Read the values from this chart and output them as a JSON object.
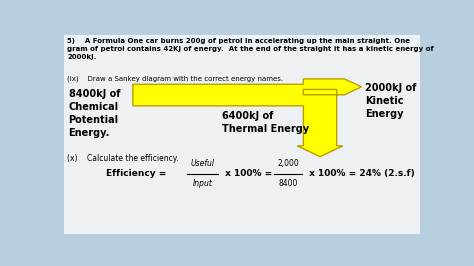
{
  "background_color": "#b8cfe0",
  "panel_color": "#f0f2f4",
  "arrow_color": "#ffff00",
  "arrow_edge_color": "#b8a000",
  "title_text": "5)    A Formula One car burns 200g of petrol in accelerating up the main straight. One gram of petrol contains 42KJ of energy.  At the end of the straight it has a kinetic energy of 2000kJ.",
  "ix_sankey": "(ix)    Draw a Sankey diagram with the correct energy names.",
  "label_left": "8400kJ of\nChemical\nPotential\nEnergy.",
  "label_right": "2000kJ of\nKinetic\nEnergy",
  "label_down": "6400kJ of\nThermal Energy",
  "ix_efficiency": "(x)    Calculate the efficiency.",
  "total": 8400,
  "kinetic": 2000,
  "thermal": 6400
}
